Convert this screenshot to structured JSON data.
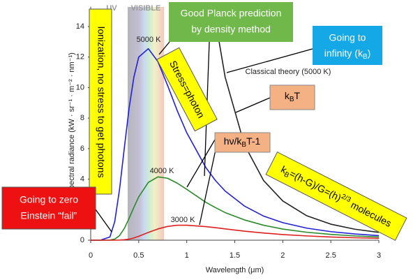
{
  "chart_data": {
    "type": "line",
    "x_label": "Wavelength (μm)",
    "y_label": "Spectral radiance (kW · sr⁻¹ · m⁻² · nm⁻¹)",
    "band_labels": [
      "UV",
      "VISIBLE"
    ],
    "x": [
      0,
      0.1,
      0.2,
      0.25,
      0.3,
      0.35,
      0.4,
      0.45,
      0.5,
      0.6,
      0.7,
      0.8,
      0.9,
      1.0,
      1.2,
      1.3,
      1.4,
      1.6,
      1.8,
      2.0,
      2.25,
      2.5,
      2.75,
      3.0
    ],
    "series": [
      {
        "name": "5000 K",
        "color": "#2020dd",
        "values": [
          0,
          0,
          0.21,
          1.21,
          3.32,
          6.04,
          8.67,
          10.7,
          12.0,
          12.55,
          11.7,
          10.15,
          8.5,
          7.04,
          4.75,
          3.9,
          3.22,
          2.24,
          1.58,
          1.15,
          0.79,
          0.56,
          0.41,
          0.3
        ]
      },
      {
        "name": "4000 K",
        "color": "#2a8a2a",
        "values": [
          0,
          0,
          0.01,
          0.07,
          0.3,
          0.77,
          1.44,
          2.16,
          2.84,
          3.79,
          4.15,
          4.06,
          3.74,
          3.33,
          2.48,
          2.13,
          1.81,
          1.33,
          0.98,
          0.73,
          0.52,
          0.38,
          0.28,
          0.21
        ]
      },
      {
        "name": "3000 K",
        "color": "#e02020",
        "values": [
          0,
          0,
          0,
          0,
          0.01,
          0.03,
          0.07,
          0.15,
          0.26,
          0.51,
          0.74,
          0.9,
          0.98,
          0.98,
          0.89,
          0.82,
          0.74,
          0.59,
          0.47,
          0.37,
          0.28,
          0.21,
          0.16,
          0.12
        ]
      },
      {
        "name": "Classical theory (5000 K)",
        "color": "#222222",
        "values": [
          null,
          null,
          null,
          null,
          null,
          null,
          null,
          null,
          null,
          null,
          null,
          null,
          null,
          null,
          null,
          14.37,
          10.68,
          6.26,
          3.91,
          2.57,
          1.6,
          1.05,
          0.72,
          0.51
        ]
      }
    ],
    "xlim": [
      0,
      3
    ],
    "xticks": [
      0,
      0.5,
      1,
      1.5,
      2,
      2.5,
      3
    ],
    "ylim": [
      0,
      15.3
    ],
    "yticks": [
      0,
      2,
      4,
      6,
      8,
      10,
      12,
      14
    ],
    "grid": false
  },
  "annotations": {
    "ionization": "Ionization, no stress to get photons",
    "planck": [
      "Good Planck prediction",
      "by density  method"
    ],
    "infinity_line1": "Going to",
    "infinity_line2": [
      "infinity (k",
      "B",
      ")"
    ],
    "stress": "Stress=photon",
    "kbt": [
      "k",
      "B",
      "T"
    ],
    "hv": [
      "hν/k",
      "B",
      "T-1"
    ],
    "molecules": [
      "k",
      "B",
      "=(h-G)/G=(h)",
      "2/3",
      " molecules"
    ],
    "zero": [
      "Going to zero",
      "Einstein “fail”"
    ]
  }
}
